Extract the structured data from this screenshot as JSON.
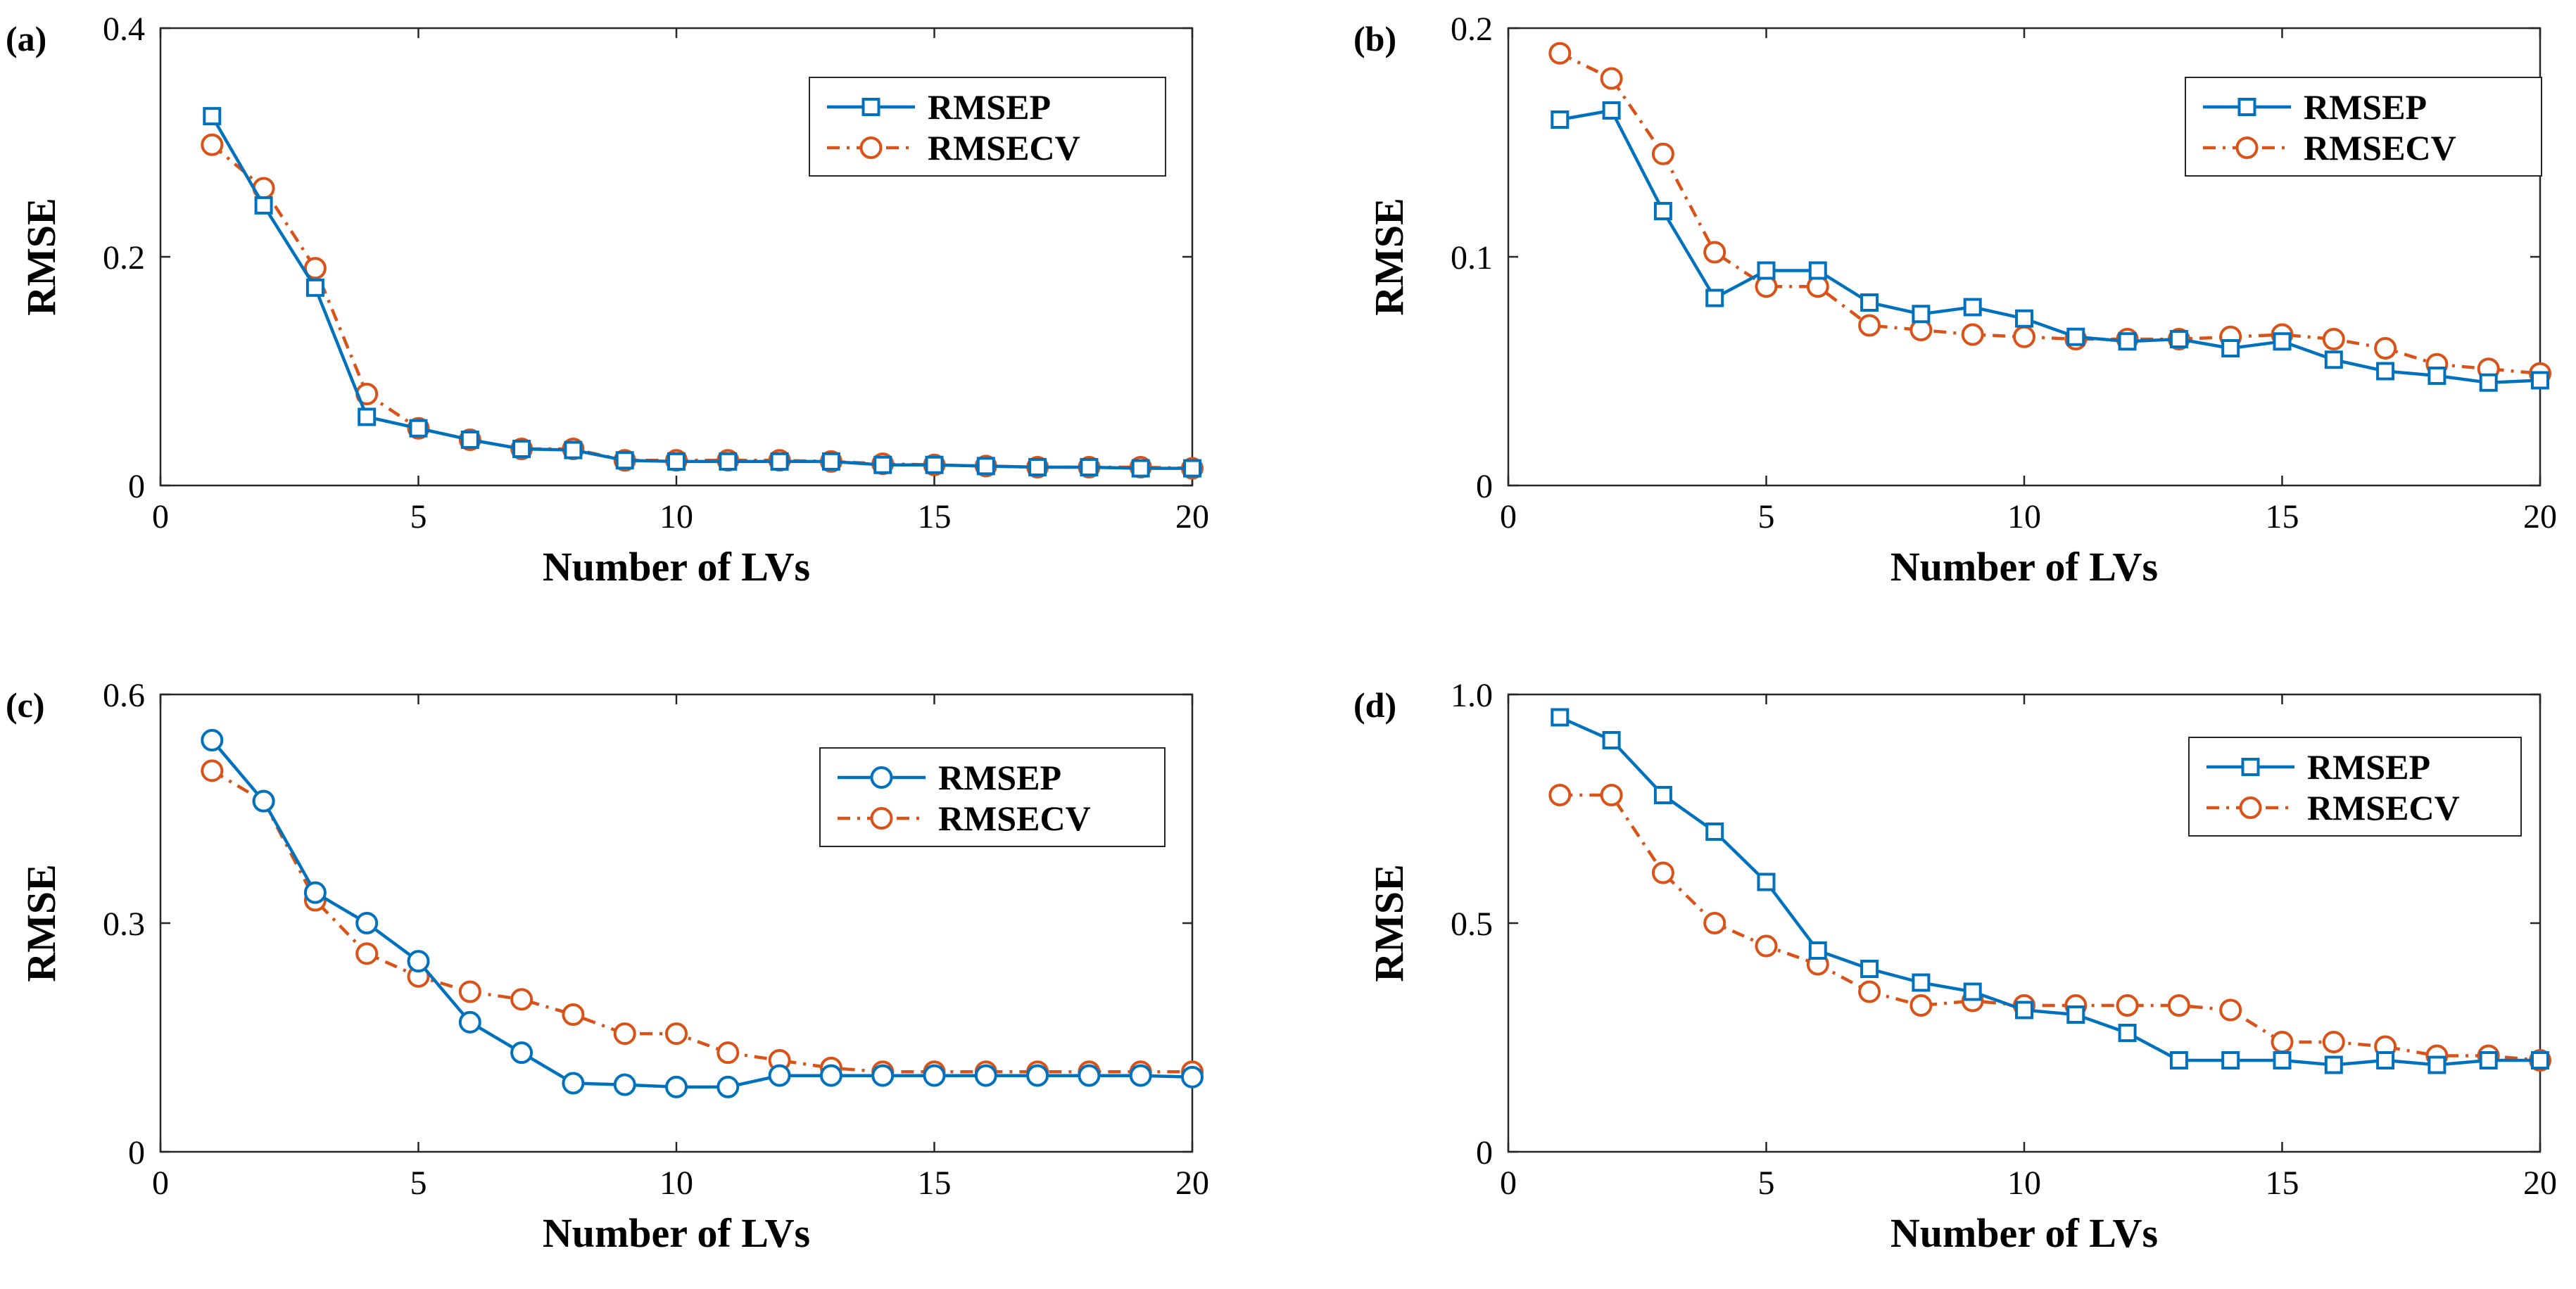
{
  "figure": {
    "background": "#ffffff"
  },
  "colors": {
    "rmsep": "#0072BD",
    "rmsecv": "#D95319"
  },
  "chart_data": [
    {
      "type": "line",
      "panel_label": "(a)",
      "marker_rmsep": "square",
      "xlabel": "Number of LVs",
      "ylabel": "RMSE",
      "xlim": [
        0,
        20
      ],
      "ylim": [
        0,
        0.4
      ],
      "xticks": [
        0,
        5,
        10,
        15,
        20
      ],
      "xtick_labels": [
        "0",
        "5",
        "10",
        "15",
        "20"
      ],
      "yticks": [
        0,
        0.2,
        0.4
      ],
      "ytick_labels": [
        "0",
        "0.2",
        "0.4"
      ],
      "legend_position": "top-right",
      "x": [
        1,
        2,
        3,
        4,
        5,
        6,
        7,
        8,
        9,
        10,
        11,
        12,
        13,
        14,
        15,
        16,
        17,
        18,
        19,
        20
      ],
      "series": [
        {
          "name": "RMSEP",
          "values": [
            0.323,
            0.245,
            0.173,
            0.06,
            0.05,
            0.04,
            0.032,
            0.031,
            0.022,
            0.021,
            0.021,
            0.021,
            0.021,
            0.018,
            0.018,
            0.017,
            0.016,
            0.016,
            0.015,
            0.015
          ]
        },
        {
          "name": "RMSECV",
          "values": [
            0.298,
            0.26,
            0.19,
            0.08,
            0.05,
            0.04,
            0.032,
            0.032,
            0.022,
            0.022,
            0.022,
            0.022,
            0.021,
            0.019,
            0.018,
            0.017,
            0.016,
            0.016,
            0.016,
            0.015
          ]
        }
      ]
    },
    {
      "type": "line",
      "panel_label": "(b)",
      "marker_rmsep": "square",
      "xlabel": "Number of LVs",
      "ylabel": "RMSE",
      "xlim": [
        0,
        20
      ],
      "ylim": [
        0,
        0.2
      ],
      "xticks": [
        0,
        5,
        10,
        15,
        20
      ],
      "xtick_labels": [
        "0",
        "5",
        "10",
        "15",
        "20"
      ],
      "yticks": [
        0,
        0.1,
        0.2
      ],
      "ytick_labels": [
        "0",
        "0.1",
        "0.2"
      ],
      "legend_position": "top-right",
      "x": [
        1,
        2,
        3,
        4,
        5,
        6,
        7,
        8,
        9,
        10,
        11,
        12,
        13,
        14,
        15,
        16,
        17,
        18,
        19,
        20
      ],
      "series": [
        {
          "name": "RMSEP",
          "values": [
            0.16,
            0.164,
            0.12,
            0.082,
            0.094,
            0.094,
            0.08,
            0.075,
            0.078,
            0.073,
            0.065,
            0.063,
            0.064,
            0.06,
            0.063,
            0.055,
            0.05,
            0.048,
            0.045,
            0.046
          ]
        },
        {
          "name": "RMSECV",
          "values": [
            0.189,
            0.178,
            0.145,
            0.102,
            0.087,
            0.087,
            0.07,
            0.068,
            0.066,
            0.065,
            0.064,
            0.064,
            0.064,
            0.065,
            0.066,
            0.064,
            0.06,
            0.053,
            0.051,
            0.049
          ]
        }
      ]
    },
    {
      "type": "line",
      "panel_label": "(c)",
      "marker_rmsep": "circle",
      "xlabel": "Number of LVs",
      "ylabel": "RMSE",
      "xlim": [
        0,
        20
      ],
      "ylim": [
        0,
        0.6
      ],
      "xticks": [
        0,
        5,
        10,
        15,
        20
      ],
      "xtick_labels": [
        "0",
        "5",
        "10",
        "15",
        "20"
      ],
      "yticks": [
        0,
        0.3,
        0.6
      ],
      "ytick_labels": [
        "0",
        "0.3",
        "0.6"
      ],
      "legend_position": "top-right",
      "x": [
        1,
        2,
        3,
        4,
        5,
        6,
        7,
        8,
        9,
        10,
        11,
        12,
        13,
        14,
        15,
        16,
        17,
        18,
        19,
        20
      ],
      "series": [
        {
          "name": "RMSEP",
          "values": [
            0.54,
            0.46,
            0.34,
            0.3,
            0.25,
            0.17,
            0.13,
            0.09,
            0.088,
            0.085,
            0.085,
            0.1,
            0.1,
            0.1,
            0.1,
            0.1,
            0.1,
            0.1,
            0.1,
            0.098
          ]
        },
        {
          "name": "RMSECV",
          "values": [
            0.5,
            0.46,
            0.33,
            0.26,
            0.23,
            0.21,
            0.2,
            0.18,
            0.155,
            0.155,
            0.13,
            0.12,
            0.11,
            0.105,
            0.105,
            0.105,
            0.105,
            0.105,
            0.105,
            0.105
          ]
        }
      ]
    },
    {
      "type": "line",
      "panel_label": "(d)",
      "marker_rmsep": "square",
      "xlabel": "Number of LVs",
      "ylabel": "RMSE",
      "xlim": [
        0,
        20
      ],
      "ylim": [
        0,
        1.0
      ],
      "xticks": [
        0,
        5,
        10,
        15,
        20
      ],
      "xtick_labels": [
        "0",
        "5",
        "10",
        "15",
        "20"
      ],
      "yticks": [
        0,
        0.5,
        1.0
      ],
      "ytick_labels": [
        "0",
        "0.5",
        "1.0"
      ],
      "legend_position": "top-right",
      "x": [
        1,
        2,
        3,
        4,
        5,
        6,
        7,
        8,
        9,
        10,
        11,
        12,
        13,
        14,
        15,
        16,
        17,
        18,
        19,
        20
      ],
      "series": [
        {
          "name": "RMSEP",
          "values": [
            0.95,
            0.9,
            0.78,
            0.7,
            0.59,
            0.44,
            0.4,
            0.37,
            0.35,
            0.31,
            0.3,
            0.26,
            0.2,
            0.2,
            0.2,
            0.19,
            0.2,
            0.19,
            0.2,
            0.2
          ]
        },
        {
          "name": "RMSECV",
          "values": [
            0.78,
            0.78,
            0.61,
            0.5,
            0.45,
            0.41,
            0.35,
            0.32,
            0.33,
            0.32,
            0.32,
            0.32,
            0.32,
            0.31,
            0.24,
            0.24,
            0.23,
            0.21,
            0.21,
            0.2
          ]
        }
      ]
    }
  ]
}
